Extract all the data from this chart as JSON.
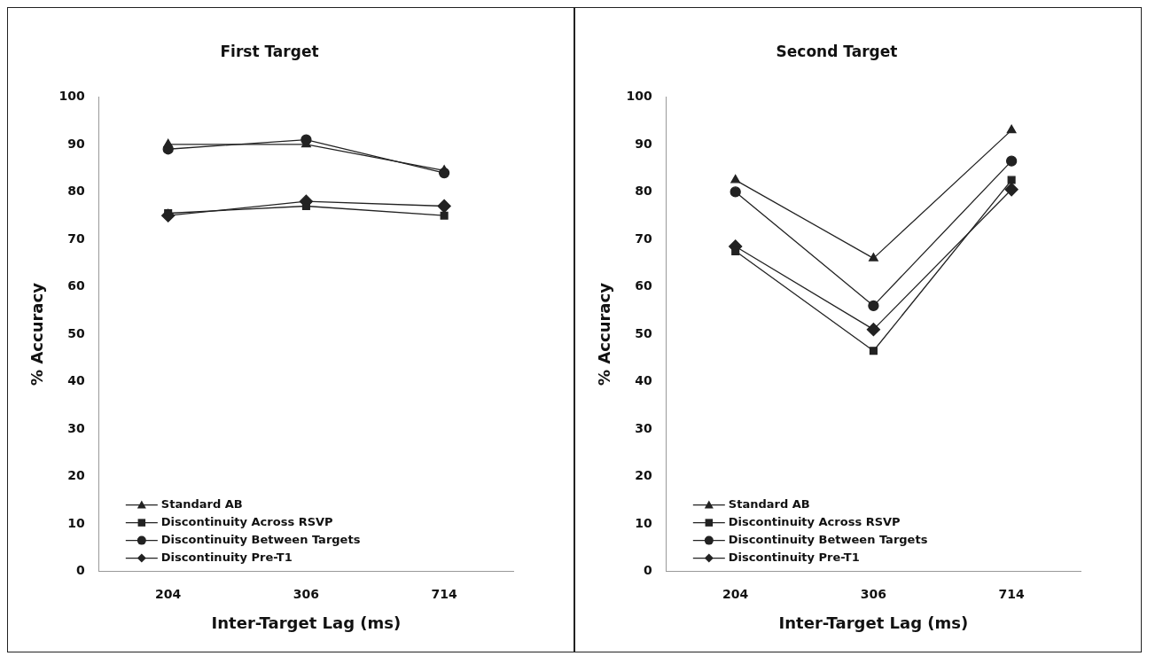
{
  "chart_data": [
    {
      "type": "line",
      "title": "First Target",
      "xlabel": "Inter-Target Lag (ms)",
      "ylabel": "% Accuracy",
      "categories": [
        "204",
        "306",
        "714"
      ],
      "ylim": [
        0,
        100
      ],
      "yticks": [
        0,
        10,
        20,
        30,
        40,
        50,
        60,
        70,
        80,
        90,
        100
      ],
      "grid": false,
      "legend": "bottom left",
      "series": [
        {
          "name": "Standard AB",
          "color": "#222222",
          "marker": "triangle",
          "values": [
            90,
            90,
            84.5
          ]
        },
        {
          "name": "Discontinuity Across RSVP",
          "color": "#222222",
          "marker": "square",
          "values": [
            75.5,
            77,
            75
          ]
        },
        {
          "name": "Discontinuity Between Targets",
          "color": "#222222",
          "marker": "circle",
          "values": [
            89,
            91,
            84
          ]
        },
        {
          "name": "Discontinuity Pre-T1",
          "color": "#222222",
          "marker": "diamond",
          "values": [
            75,
            78,
            77
          ]
        }
      ]
    },
    {
      "type": "line",
      "title": "Second Target",
      "xlabel": "Inter-Target Lag (ms)",
      "ylabel": "% Accuracy",
      "categories": [
        "204",
        "306",
        "714"
      ],
      "ylim": [
        0,
        100
      ],
      "yticks": [
        0,
        10,
        20,
        30,
        40,
        50,
        60,
        70,
        80,
        90,
        100
      ],
      "grid": false,
      "legend": "bottom left",
      "series": [
        {
          "name": "Standard AB",
          "color": "#222222",
          "marker": "triangle",
          "values": [
            82.5,
            66,
            93
          ]
        },
        {
          "name": "Discontinuity Across RSVP",
          "color": "#222222",
          "marker": "square",
          "values": [
            67.5,
            46.5,
            82.5
          ]
        },
        {
          "name": "Discontinuity Between Targets",
          "color": "#222222",
          "marker": "circle",
          "values": [
            80,
            56,
            86.5
          ]
        },
        {
          "name": "Discontinuity Pre-T1",
          "color": "#222222",
          "marker": "diamond",
          "values": [
            68.5,
            51,
            80.5
          ]
        }
      ]
    }
  ]
}
